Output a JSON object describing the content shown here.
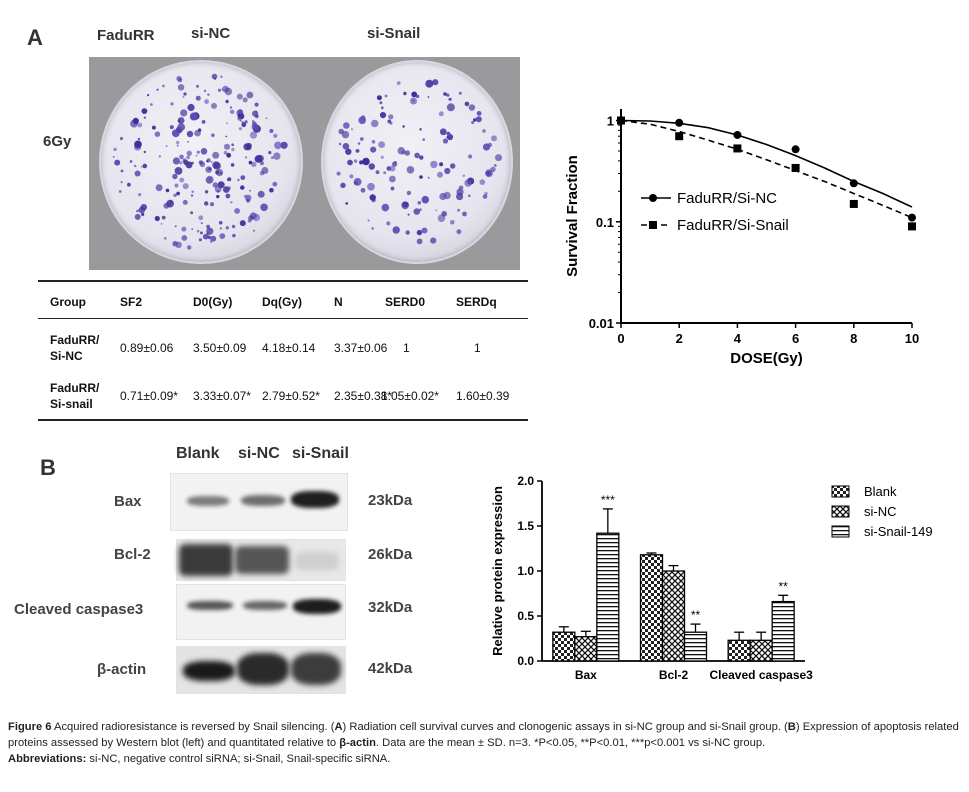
{
  "panelA": {
    "letter": "A",
    "photo_headers": [
      "FaduRR",
      "si-NC",
      "si-Snail"
    ],
    "dose_label": "6Gy",
    "table": {
      "headers": [
        "Group",
        "SF2",
        "D0(Gy)",
        "Dq(Gy)",
        "N",
        "SERD0",
        "SERDq"
      ],
      "rows": [
        [
          "FaduRR/\nSi-NC",
          "0.89±0.06",
          "3.50±0.09",
          "4.18±0.14",
          "3.37±0.06",
          "1",
          "1"
        ],
        [
          "FaduRR/\nSi-snail",
          "0.71±0.09*",
          "3.33±0.07*",
          "2.79±0.52*",
          "2.35±0.38*",
          "1.05±0.02*",
          "1.60±0.39"
        ]
      ]
    }
  },
  "chart_data": [
    {
      "type": "line",
      "xlabel": "DOSE(Gy)",
      "ylabel": "Survival Fraction",
      "x_ticks": [
        "0",
        "2",
        "4",
        "6",
        "8",
        "10"
      ],
      "y_ticks": [
        "0.01",
        "0.1",
        "1"
      ],
      "yscale": "log",
      "xlim": [
        0,
        10
      ],
      "ylim": [
        0.01,
        1.3
      ],
      "legend_position": "center-left",
      "series": [
        {
          "name": "FaduRR/Si-NC",
          "marker": "circle",
          "line": "solid",
          "x": [
            0,
            2,
            4,
            6,
            8,
            10
          ],
          "y": [
            1.0,
            0.95,
            0.72,
            0.52,
            0.24,
            0.11
          ],
          "fit_x": [
            0,
            1,
            2,
            3,
            4,
            5,
            6,
            7,
            8,
            9,
            10
          ],
          "fit_y": [
            1.0,
            0.99,
            0.94,
            0.85,
            0.72,
            0.58,
            0.45,
            0.34,
            0.25,
            0.19,
            0.14
          ]
        },
        {
          "name": "FaduRR/Si-Snail",
          "marker": "square",
          "line": "dashed",
          "x": [
            0,
            2,
            4,
            6,
            8,
            10
          ],
          "y": [
            1.0,
            0.7,
            0.53,
            0.34,
            0.15,
            0.09
          ],
          "fit_x": [
            0,
            1,
            2,
            3,
            4,
            5,
            6,
            7,
            8,
            9,
            10
          ],
          "fit_y": [
            1.0,
            0.92,
            0.78,
            0.64,
            0.52,
            0.41,
            0.32,
            0.25,
            0.19,
            0.145,
            0.11
          ]
        }
      ]
    },
    {
      "type": "bar",
      "ylabel": "Relative protein expression",
      "categories": [
        "Bax",
        "Bcl-2",
        "Cleaved caspase3"
      ],
      "y_ticks": [
        "0.0",
        "0.5",
        "1.0",
        "1.5",
        "2.0"
      ],
      "ylim": [
        0,
        2.0
      ],
      "legend_position": "right",
      "series": [
        {
          "name": "Blank",
          "pattern": "checker",
          "values": [
            0.32,
            1.18,
            0.23
          ],
          "errors": [
            0.06,
            0.02,
            0.09
          ]
        },
        {
          "name": "si-NC",
          "pattern": "cross",
          "values": [
            0.27,
            1.0,
            0.23
          ],
          "errors": [
            0.06,
            0.06,
            0.09
          ]
        },
        {
          "name": "si-Snail-149",
          "pattern": "hstripe",
          "values": [
            1.42,
            0.32,
            0.66
          ],
          "errors": [
            0.27,
            0.09,
            0.07
          ]
        }
      ],
      "annotations": [
        {
          "category": "Bax",
          "series": "si-Snail-149",
          "text": "***"
        },
        {
          "category": "Bcl-2",
          "series": "si-Snail-149",
          "text": "**"
        },
        {
          "category": "Cleaved caspase3",
          "series": "si-Snail-149",
          "text": "**"
        }
      ]
    }
  ],
  "panelB": {
    "letter": "B",
    "lane_labels": [
      "Blank",
      "si-NC",
      "si-Snail"
    ],
    "proteins": [
      {
        "name": "Bax",
        "kda": "23kDa"
      },
      {
        "name": "Bcl-2",
        "kda": "26kDa"
      },
      {
        "name": "Cleaved caspase3",
        "kda": "32kDa"
      },
      {
        "name": "β-actin",
        "kda": "42kDa"
      }
    ]
  },
  "caption": {
    "fig_label": "Figure 6",
    "text1": " Acquired radioresistance is reversed by Snail silencing. (",
    "a": "A",
    "text2": ") Radiation cell survival curves and clonogenic assays in si-NC group and si-Snail group. (",
    "b": "B",
    "text3": ") Expression of apoptosis related proteins assessed by Western blot (left) and quantitated relative to ",
    "beta": "β-actin",
    "text4": ". Data are the mean ± SD. n=3. *P<0.05, **P<0.01, ***p<0.001 vs si-NC group.",
    "abbr_label": "Abbreviations:",
    "abbr_text": " si-NC, negative control siRNA; si-Snail, Snail-specific siRNA."
  }
}
